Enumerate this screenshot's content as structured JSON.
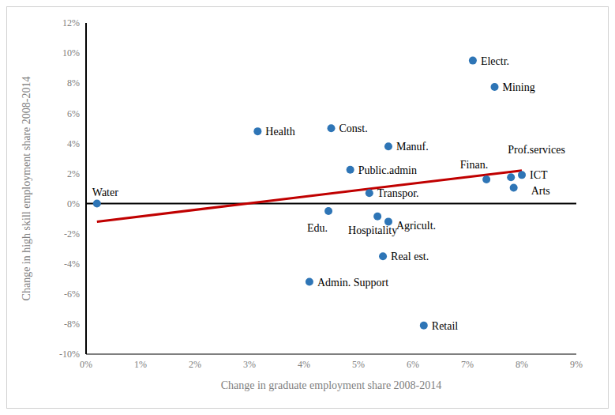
{
  "chart_data": {
    "type": "scatter",
    "x_label": "Change in graduate employment share 2008-2014",
    "y_label": "Change in high skill employment share 2008-2014",
    "point_labels": [
      "Water",
      "Health",
      "Const.",
      "Manuf.",
      "Public.admin",
      "Transpor.",
      "Edu.",
      "Hospitality",
      "Agricult.",
      "Real est.",
      "Admin. Support",
      "Retail",
      "Electr.",
      "Mining",
      "Finan.",
      "Prof.services",
      "ICT",
      "Arts"
    ],
    "x": [
      0.2,
      3.15,
      4.5,
      5.55,
      4.85,
      5.2,
      4.45,
      5.35,
      5.55,
      5.45,
      4.1,
      6.2,
      7.1,
      7.5,
      7.35,
      7.8,
      8.0,
      7.85
    ],
    "values": [
      0.0,
      4.8,
      5.0,
      3.8,
      2.25,
      0.7,
      -0.5,
      -0.85,
      -1.2,
      -3.5,
      -5.2,
      -8.1,
      9.5,
      7.75,
      1.6,
      1.75,
      1.9,
      1.05
    ],
    "color": "#2e75b6",
    "marker": "circle",
    "trend_line": {
      "x": [
        0.2,
        8.0
      ],
      "values": [
        -1.2,
        2.2
      ],
      "color": "#c00000",
      "line_style": "solid"
    },
    "xlim": [
      0,
      9
    ],
    "xticks": [
      {
        "value": 0,
        "label": "0%"
      },
      {
        "value": 1,
        "label": "1%"
      },
      {
        "value": 2,
        "label": "2%"
      },
      {
        "value": 3,
        "label": "3%"
      },
      {
        "value": 4,
        "label": "4%"
      },
      {
        "value": 5,
        "label": "5%"
      },
      {
        "value": 6,
        "label": "6%"
      },
      {
        "value": 7,
        "label": "7%"
      },
      {
        "value": 8,
        "label": "8%"
      },
      {
        "value": 9,
        "label": "9%"
      }
    ],
    "ylim": [
      -10,
      12
    ],
    "yticks": [
      {
        "value": -10,
        "label": "-10%"
      },
      {
        "value": -8,
        "label": "-8%"
      },
      {
        "value": -6,
        "label": "-6%"
      },
      {
        "value": -4,
        "label": "-4%"
      },
      {
        "value": -2,
        "label": "-2%"
      },
      {
        "value": 0,
        "label": "0%"
      },
      {
        "value": 2,
        "label": "2%"
      },
      {
        "value": 4,
        "label": "4%"
      },
      {
        "value": 6,
        "label": "6%"
      },
      {
        "value": 8,
        "label": "8%"
      },
      {
        "value": 10,
        "label": "10%"
      },
      {
        "value": 12,
        "label": "12%"
      }
    ],
    "grid": false
  }
}
